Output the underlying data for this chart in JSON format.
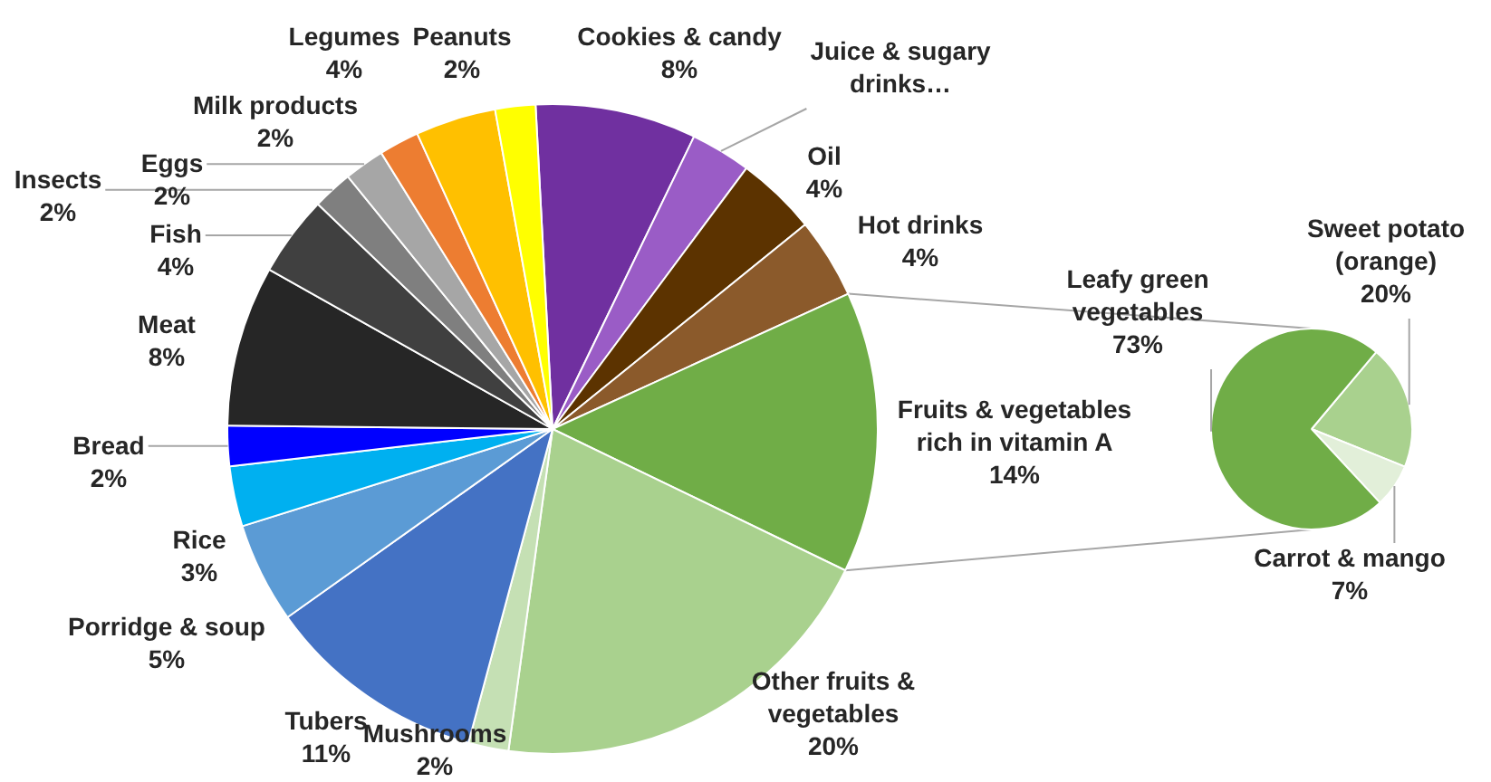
{
  "chart_data": [
    {
      "type": "pie",
      "categories": [
        "Cookies & candy",
        "Juice & sugary drinks…",
        "Oil",
        "Hot drinks",
        "Fruits & vegetables rich in vitamin A",
        "Other fruits & vegetables",
        "Mushrooms",
        "Tubers",
        "Porridge & soup",
        "Rice",
        "Bread",
        "Meat",
        "Fish",
        "Insects",
        "Eggs",
        "Milk products",
        "Legumes",
        "Peanuts"
      ],
      "values": [
        8,
        3,
        4,
        4,
        14,
        20,
        2,
        11,
        5,
        3,
        2,
        8,
        4,
        2,
        2,
        2,
        4,
        2
      ],
      "value_labels": [
        "8%",
        null,
        "4%",
        "4%",
        "14%",
        "20%",
        "2%",
        "11%",
        "5%",
        "3%",
        "2%",
        "8%",
        "4%",
        "2%",
        "2%",
        "2%",
        "4%",
        "2%"
      ],
      "colors": [
        "#7030a0",
        "#9a5cc6",
        "#5c3300",
        "#8b5a2b",
        "#70ad47",
        "#a9d18e",
        "#c5e0b4",
        "#4472c4",
        "#5b9bd5",
        "#00b0f0",
        "#0000ff",
        "#262626",
        "#404040",
        "#7f7f7f",
        "#a6a6a6",
        "#ed7d31",
        "#ffc000",
        "#ffff00"
      ]
    },
    {
      "type": "pie",
      "categories": [
        "Sweet potato (orange)",
        "Carrot & mango",
        "Leafy green vegetables"
      ],
      "values": [
        20,
        7,
        73
      ],
      "value_labels": [
        "20%",
        "7%",
        "73%"
      ],
      "colors": [
        "#a9d18e",
        "#e2efd9",
        "#70ad47"
      ]
    }
  ]
}
